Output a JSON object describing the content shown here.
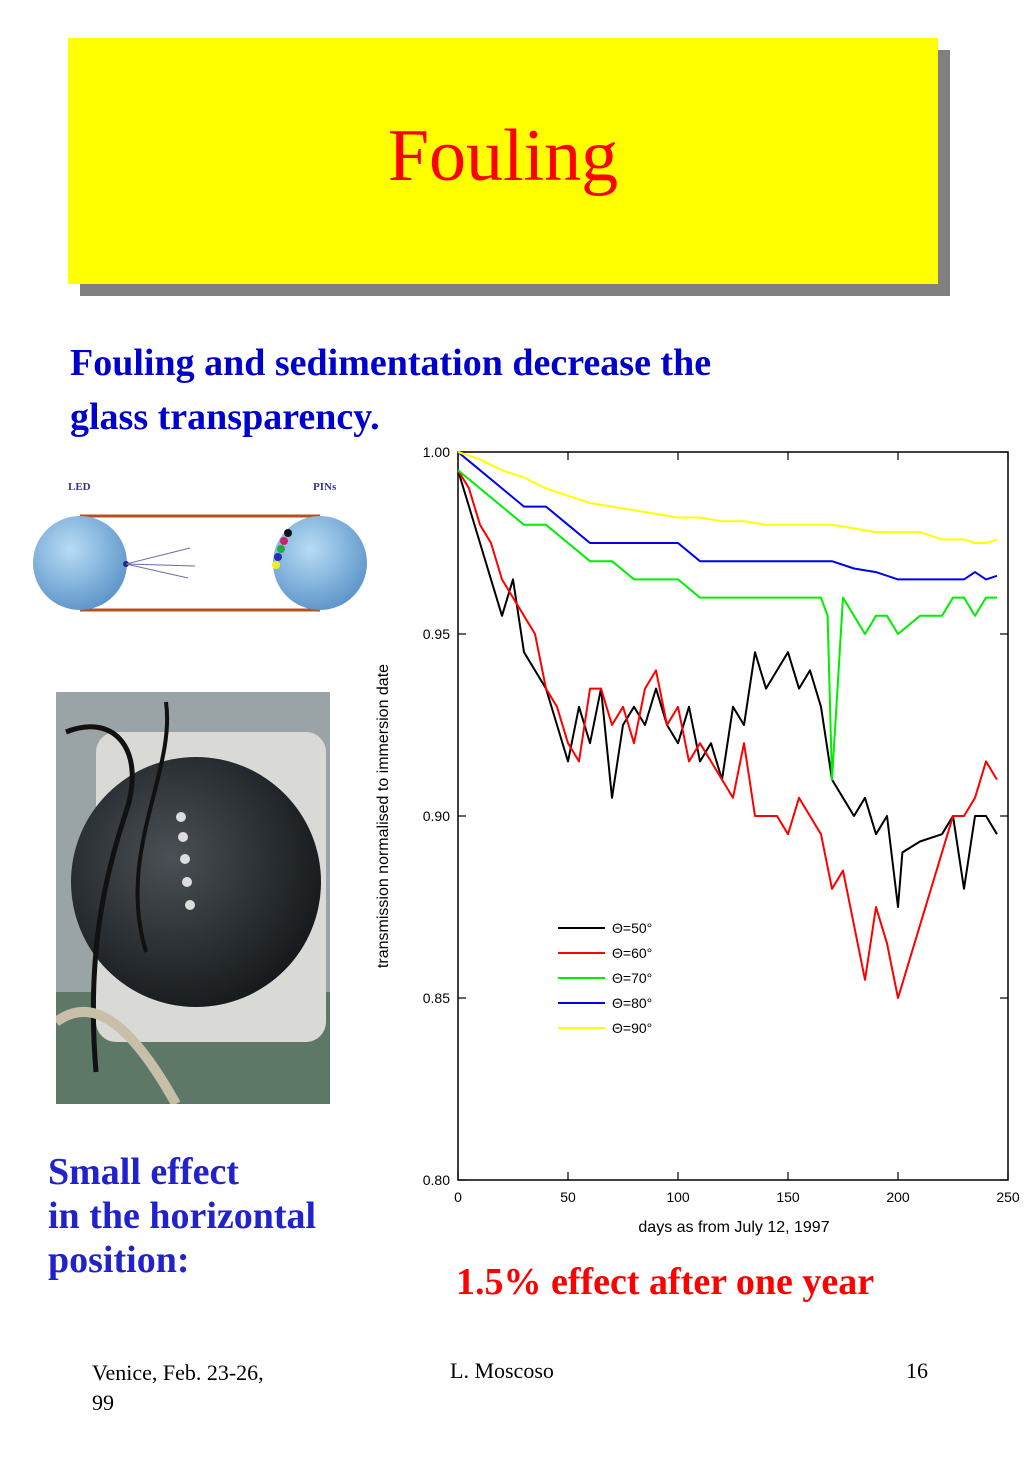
{
  "slide": {
    "title": "Fouling",
    "subtitle_line1": "Fouling and sedimentation decrease the",
    "subtitle_line2": "glass transparency.",
    "small_effect": [
      "Small effect",
      "in the horizontal",
      "position:"
    ],
    "effect_after_year": "1.5% effect after one year"
  },
  "diagram": {
    "led_label": "LED",
    "pins_label": "PINs"
  },
  "footer": {
    "left": "Venice, Feb. 23-26, 99",
    "center": "L. Moscoso",
    "page_number": "16"
  },
  "colors": {
    "title_box": "#ffff00",
    "title_text": "#ff0000",
    "subtitle_text": "#0000cc",
    "highlight_red": "#ff0000"
  },
  "chart_data": {
    "type": "line",
    "xlabel": "days as from July 12, 1997",
    "ylabel": "transmission normalised to immersion date",
    "xlim": [
      0,
      250
    ],
    "ylim": [
      0.8,
      1.0
    ],
    "xticks": [
      "0",
      "50",
      "100",
      "150",
      "200",
      "250"
    ],
    "yticks": [
      "0.80",
      "0.85",
      "0.90",
      "0.95",
      "1.00"
    ],
    "legend_position": "center-left",
    "series": [
      {
        "name": "Θ=50°",
        "color": "#000000",
        "x": [
          0,
          5,
          10,
          15,
          20,
          25,
          30,
          35,
          40,
          45,
          50,
          55,
          60,
          65,
          70,
          75,
          80,
          85,
          90,
          95,
          100,
          105,
          110,
          115,
          120,
          125,
          130,
          135,
          140,
          145,
          150,
          155,
          160,
          165,
          170,
          175,
          180,
          185,
          190,
          195,
          200,
          202,
          210,
          220,
          225,
          230,
          235,
          240,
          245
        ],
        "y": [
          0.995,
          0.985,
          0.975,
          0.965,
          0.955,
          0.965,
          0.945,
          0.94,
          0.935,
          0.925,
          0.915,
          0.93,
          0.92,
          0.935,
          0.905,
          0.925,
          0.93,
          0.925,
          0.935,
          0.925,
          0.92,
          0.93,
          0.915,
          0.92,
          0.91,
          0.93,
          0.925,
          0.945,
          0.935,
          0.94,
          0.945,
          0.935,
          0.94,
          0.93,
          0.91,
          0.905,
          0.9,
          0.905,
          0.895,
          0.9,
          0.875,
          0.89,
          0.893,
          0.895,
          0.9,
          0.88,
          0.9,
          0.9,
          0.895
        ]
      },
      {
        "name": "Θ=60°",
        "color": "#ff0000",
        "x": [
          0,
          5,
          10,
          15,
          20,
          25,
          30,
          35,
          40,
          45,
          50,
          55,
          60,
          65,
          70,
          75,
          80,
          85,
          90,
          95,
          100,
          105,
          110,
          115,
          120,
          125,
          130,
          135,
          140,
          145,
          150,
          155,
          160,
          165,
          170,
          175,
          180,
          185,
          190,
          195,
          200,
          210,
          220,
          225,
          230,
          235,
          240,
          245
        ],
        "y": [
          0.995,
          0.99,
          0.98,
          0.975,
          0.965,
          0.96,
          0.955,
          0.95,
          0.935,
          0.93,
          0.92,
          0.915,
          0.935,
          0.935,
          0.925,
          0.93,
          0.92,
          0.935,
          0.94,
          0.925,
          0.93,
          0.915,
          0.92,
          0.915,
          0.91,
          0.905,
          0.92,
          0.9,
          0.9,
          0.9,
          0.895,
          0.905,
          0.9,
          0.895,
          0.88,
          0.885,
          0.87,
          0.855,
          0.875,
          0.865,
          0.85,
          0.87,
          0.89,
          0.9,
          0.9,
          0.905,
          0.915,
          0.91
        ]
      },
      {
        "name": "Θ=70°",
        "color": "#00ee00",
        "x": [
          0,
          10,
          20,
          30,
          40,
          50,
          60,
          70,
          80,
          90,
          100,
          110,
          120,
          130,
          140,
          150,
          160,
          165,
          168,
          170,
          175,
          180,
          185,
          190,
          195,
          200,
          210,
          220,
          225,
          230,
          235,
          240,
          245
        ],
        "y": [
          0.995,
          0.99,
          0.985,
          0.98,
          0.98,
          0.975,
          0.97,
          0.97,
          0.965,
          0.965,
          0.965,
          0.96,
          0.96,
          0.96,
          0.96,
          0.96,
          0.96,
          0.96,
          0.955,
          0.91,
          0.96,
          0.955,
          0.95,
          0.955,
          0.955,
          0.95,
          0.955,
          0.955,
          0.96,
          0.96,
          0.955,
          0.96,
          0.96
        ]
      },
      {
        "name": "Θ=80°",
        "color": "#0000ee",
        "x": [
          0,
          10,
          20,
          30,
          40,
          50,
          60,
          70,
          80,
          90,
          100,
          110,
          120,
          130,
          140,
          150,
          160,
          170,
          180,
          190,
          200,
          210,
          220,
          230,
          235,
          240,
          245
        ],
        "y": [
          1.0,
          0.995,
          0.99,
          0.985,
          0.985,
          0.98,
          0.975,
          0.975,
          0.975,
          0.975,
          0.975,
          0.97,
          0.97,
          0.97,
          0.97,
          0.97,
          0.97,
          0.97,
          0.968,
          0.967,
          0.965,
          0.965,
          0.965,
          0.965,
          0.967,
          0.965,
          0.966
        ]
      },
      {
        "name": "Θ=90°",
        "color": "#ffff00",
        "x": [
          0,
          10,
          20,
          30,
          40,
          50,
          60,
          70,
          80,
          90,
          100,
          110,
          120,
          130,
          140,
          150,
          160,
          170,
          180,
          190,
          200,
          210,
          220,
          230,
          235,
          240,
          245
        ],
        "y": [
          1.0,
          0.998,
          0.995,
          0.993,
          0.99,
          0.988,
          0.986,
          0.985,
          0.984,
          0.983,
          0.982,
          0.982,
          0.981,
          0.981,
          0.98,
          0.98,
          0.98,
          0.98,
          0.979,
          0.978,
          0.978,
          0.978,
          0.976,
          0.976,
          0.975,
          0.975,
          0.976
        ]
      }
    ]
  }
}
